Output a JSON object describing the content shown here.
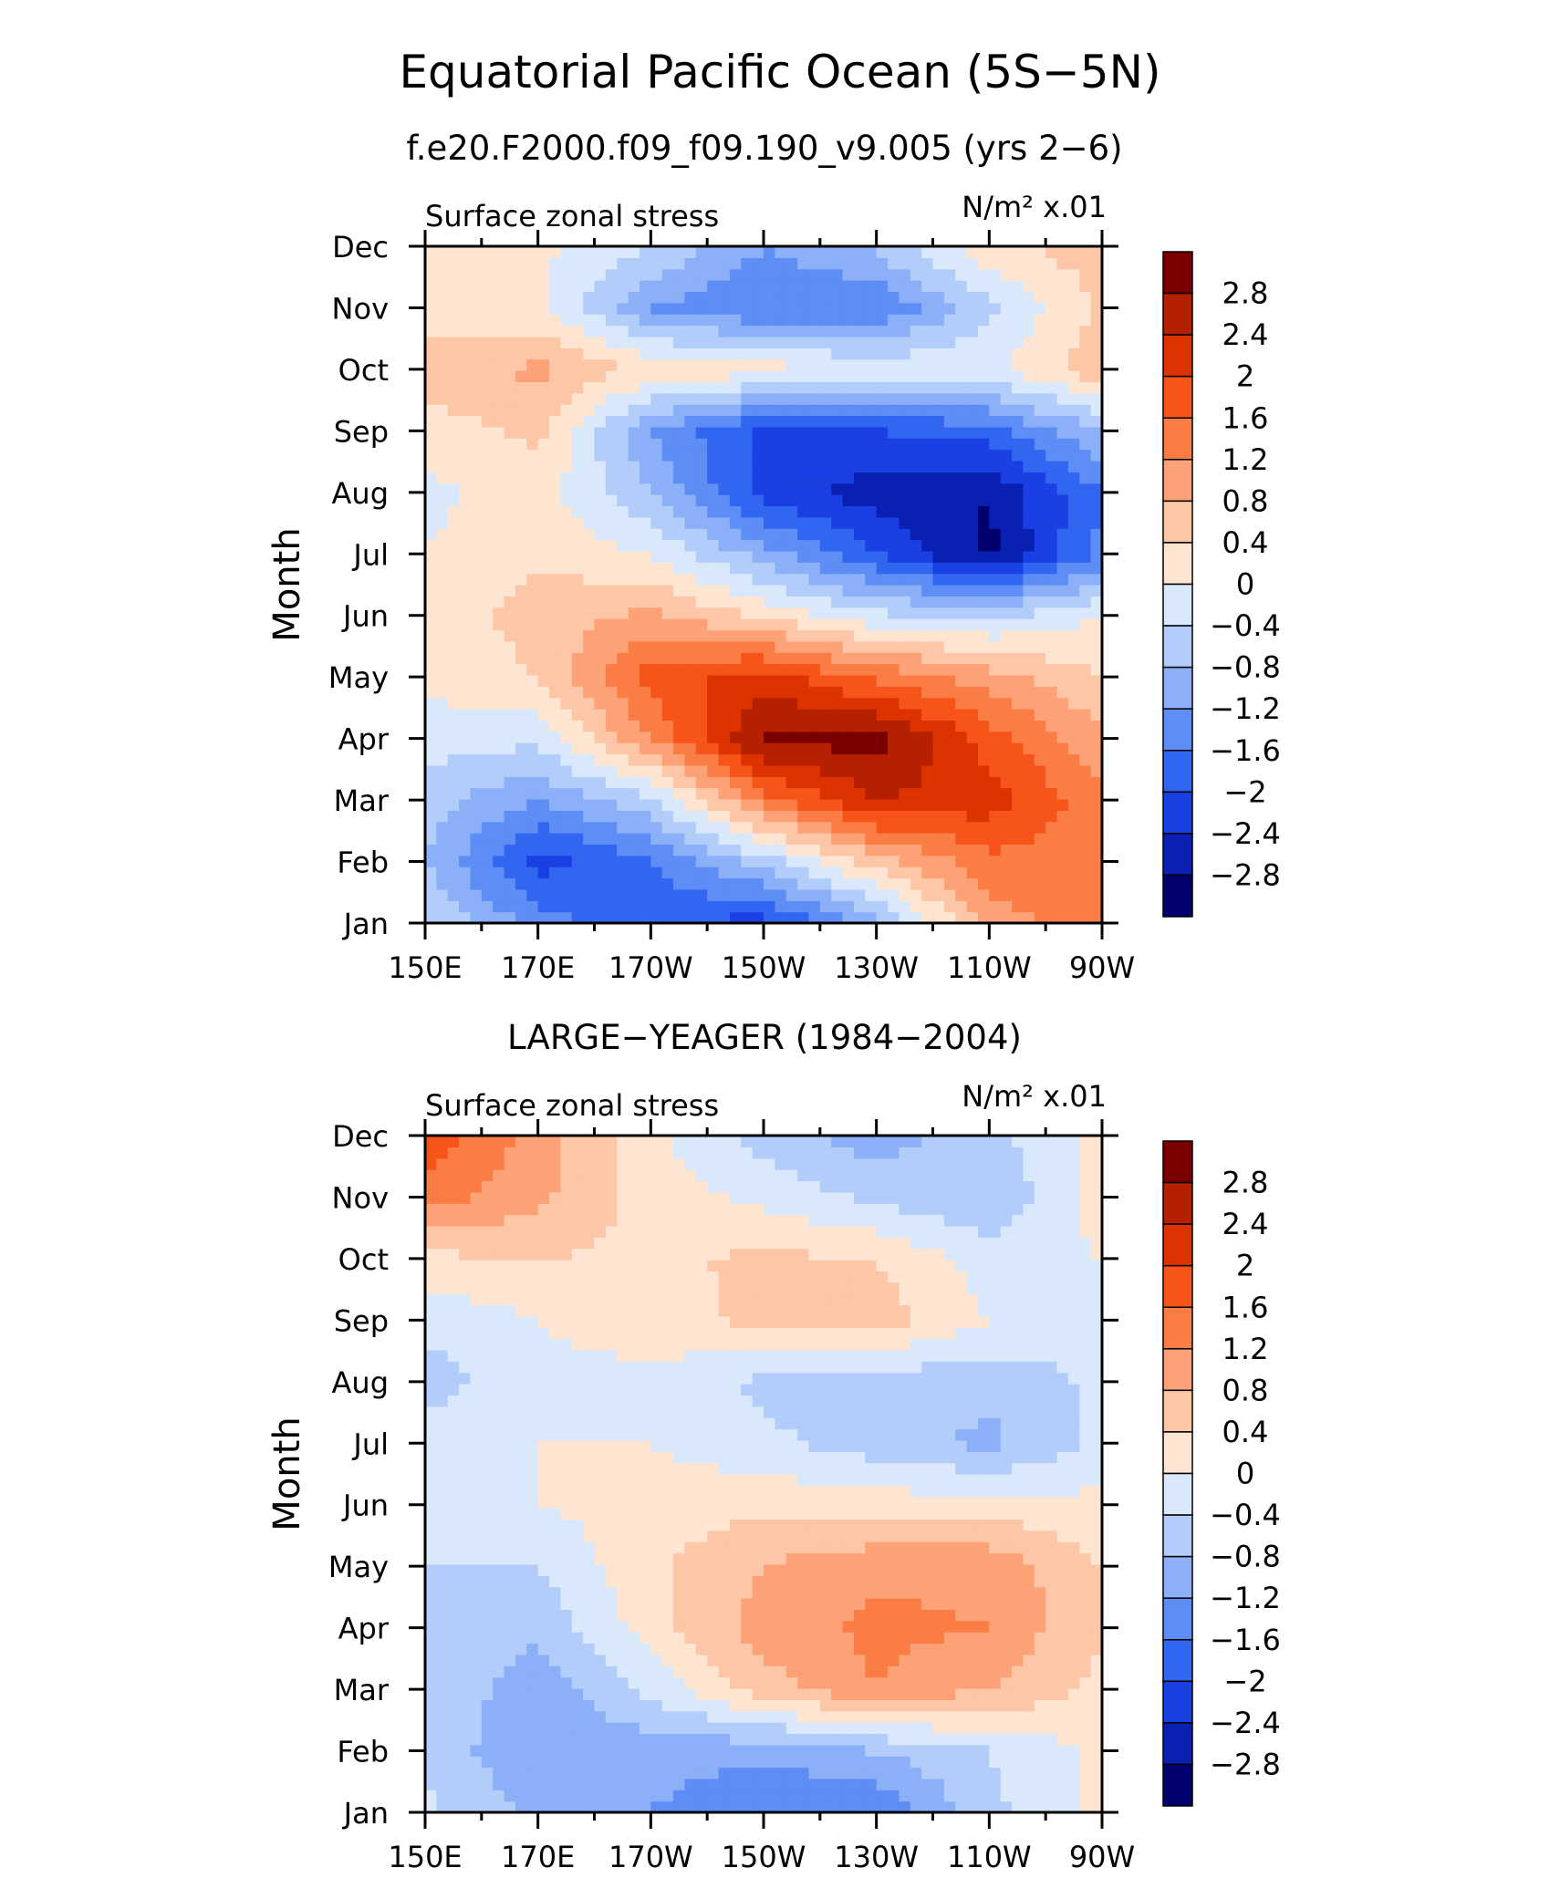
{
  "figure": {
    "title": "Equatorial Pacific Ocean (5S−5N)"
  },
  "chart_data": [
    {
      "type": "heatmap",
      "panel_title": "f.e20.F2000.f09_f09.190_v9.005 (yrs 2−6)",
      "left_label": "Surface zonal stress",
      "units": "N/m² x.01",
      "ylabel": "Month",
      "xlabel": "",
      "x": [
        "150E",
        "170E",
        "170W",
        "150W",
        "130W",
        "110W",
        "90W"
      ],
      "y": [
        "Jan",
        "Feb",
        "Mar",
        "Apr",
        "May",
        "Jun",
        "Jul",
        "Aug",
        "Sep",
        "Oct",
        "Nov",
        "Dec"
      ],
      "z": [
        [
          -0.3,
          -1.4,
          -1.9,
          -2.2,
          -1.0,
          1.0,
          1.4
        ],
        [
          -0.8,
          -2.2,
          -1.6,
          -0.6,
          0.6,
          1.5,
          1.4
        ],
        [
          -0.6,
          -1.2,
          -0.5,
          1.4,
          2.4,
          2.2,
          1.3
        ],
        [
          -0.2,
          -0.3,
          1.2,
          2.9,
          3.0,
          1.8,
          0.9
        ],
        [
          0.1,
          0.4,
          1.8,
          2.2,
          1.5,
          1.0,
          0.4
        ],
        [
          0.1,
          0.6,
          0.9,
          0.3,
          -0.3,
          -0.5,
          0.0
        ],
        [
          0.0,
          0.3,
          0.0,
          -1.0,
          -2.0,
          -2.9,
          -1.5
        ],
        [
          -0.1,
          0.2,
          -0.8,
          -2.2,
          -2.6,
          -2.8,
          -1.6
        ],
        [
          0.2,
          0.5,
          -1.2,
          -2.1,
          -2.0,
          -1.8,
          -0.8
        ],
        [
          0.6,
          0.9,
          0.3,
          0.2,
          -0.1,
          -0.1,
          0.7
        ],
        [
          0.2,
          0.1,
          -1.2,
          -1.6,
          -1.6,
          -0.5,
          0.5
        ],
        [
          0.3,
          0.1,
          -0.4,
          -1.2,
          -0.7,
          0.3,
          0.6
        ]
      ],
      "colorbar": {
        "levels": [
          "2.8",
          "2.4",
          "2",
          "1.6",
          "1.2",
          "0.8",
          "0.4",
          "0",
          "−0.4",
          "−0.8",
          "−1.2",
          "−1.6",
          "−2",
          "−2.4",
          "−2.8"
        ],
        "colors": [
          "#7a0000",
          "#b52100",
          "#dc3300",
          "#f65419",
          "#fb7d46",
          "#fda276",
          "#fdc6a6",
          "#fde5d2",
          "#d9e8fb",
          "#b3cdfa",
          "#8bb0f8",
          "#5e8df5",
          "#3066f0",
          "#1a3fe3",
          "#0a20b3",
          "#00006e"
        ]
      }
    },
    {
      "type": "heatmap",
      "panel_title": "LARGE−YEAGER (1984−2004)",
      "left_label": "Surface zonal stress",
      "units": "N/m² x.01",
      "ylabel": "Month",
      "xlabel": "",
      "x": [
        "150E",
        "170E",
        "170W",
        "150W",
        "130W",
        "110W",
        "90W"
      ],
      "y": [
        "Jan",
        "Feb",
        "Mar",
        "Apr",
        "May",
        "Jun",
        "Jul",
        "Aug",
        "Sep",
        "Oct",
        "Nov",
        "Dec"
      ],
      "z": [
        [
          -0.3,
          -0.9,
          -1.2,
          -1.6,
          -1.6,
          -0.5,
          0.1
        ],
        [
          -0.5,
          -1.2,
          -1.0,
          -1.1,
          -0.8,
          -0.4,
          0.1
        ],
        [
          -0.4,
          -1.1,
          -0.3,
          0.6,
          1.2,
          0.8,
          0.3
        ],
        [
          -0.4,
          -0.7,
          0.2,
          1.0,
          1.3,
          1.2,
          0.4
        ],
        [
          -0.4,
          -0.4,
          0.3,
          0.8,
          1.1,
          1.1,
          0.4
        ],
        [
          -0.2,
          0.0,
          0.2,
          0.3,
          0.2,
          0.2,
          0.1
        ],
        [
          -0.2,
          0.0,
          0.0,
          -0.3,
          -0.6,
          -0.9,
          -0.3
        ],
        [
          -0.6,
          -0.1,
          -0.1,
          -0.5,
          -0.6,
          -0.7,
          -0.3
        ],
        [
          -0.3,
          0.0,
          0.2,
          0.5,
          0.6,
          0.0,
          -0.3
        ],
        [
          0.3,
          0.4,
          0.3,
          0.5,
          0.4,
          -0.2,
          0.0
        ],
        [
          1.4,
          0.9,
          0.2,
          -0.1,
          -0.5,
          -0.8,
          0.2
        ],
        [
          1.9,
          1.0,
          0.1,
          -0.6,
          -1.0,
          -0.5,
          0.1
        ]
      ],
      "colorbar": {
        "levels": [
          "2.8",
          "2.4",
          "2",
          "1.6",
          "1.2",
          "0.8",
          "0.4",
          "0",
          "−0.4",
          "−0.8",
          "−1.2",
          "−1.6",
          "−2",
          "−2.4",
          "−2.8"
        ],
        "colors": [
          "#7a0000",
          "#b52100",
          "#dc3300",
          "#f65419",
          "#fb7d46",
          "#fda276",
          "#fdc6a6",
          "#fde5d2",
          "#d9e8fb",
          "#b3cdfa",
          "#8bb0f8",
          "#5e8df5",
          "#3066f0",
          "#1a3fe3",
          "#0a20b3",
          "#00006e"
        ]
      }
    }
  ]
}
